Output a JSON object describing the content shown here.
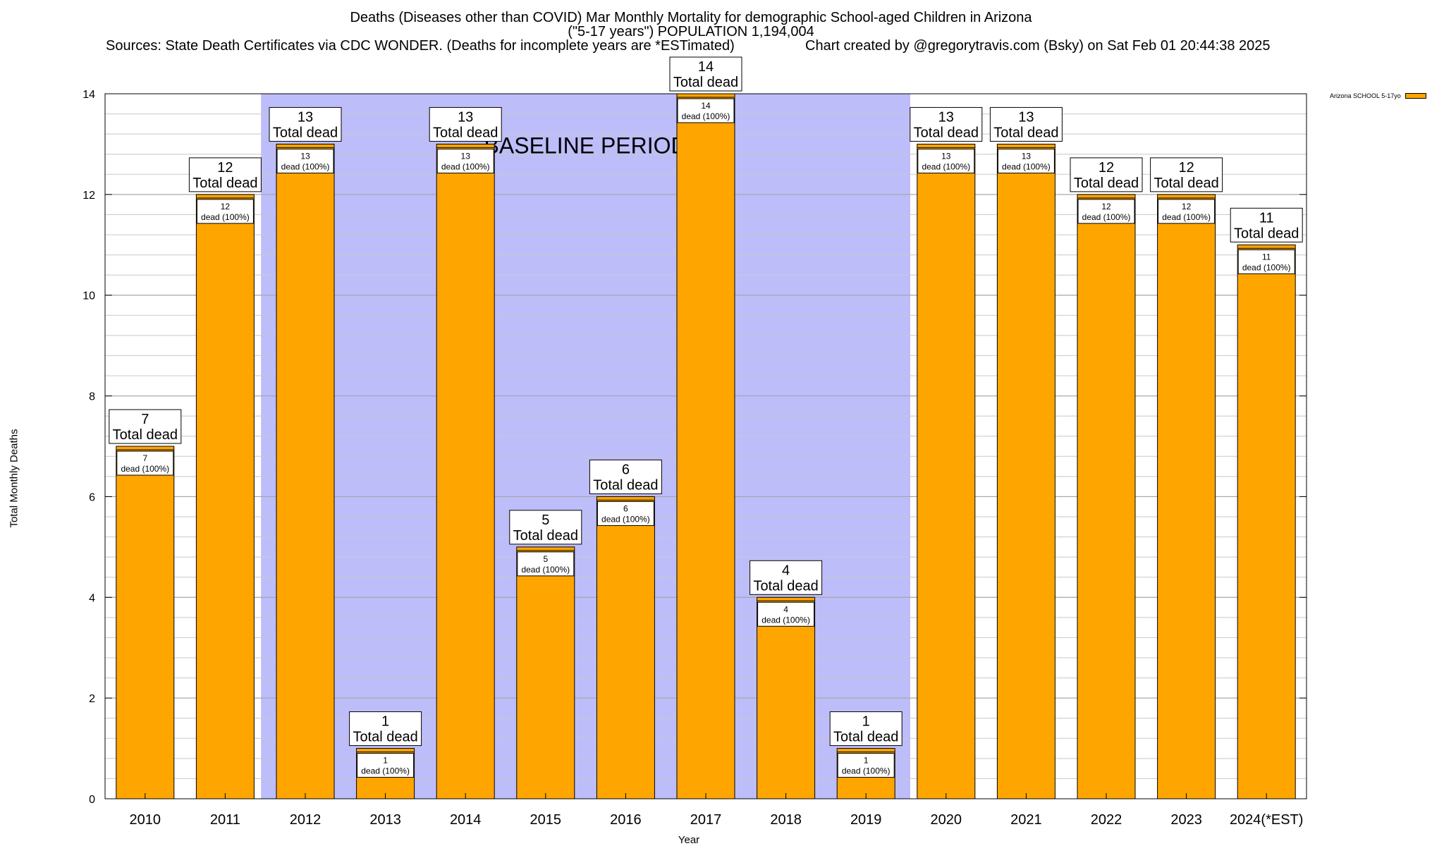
{
  "chart_data": {
    "type": "bar",
    "title": "Deaths (Diseases other than COVID) Mar Monthly Mortality for demographic School-aged Children in Arizona",
    "subtitle": "(\"5-17 years\") POPULATION 1,194,004",
    "sources": "Sources: State Death Certificates via CDC WONDER. (Deaths for incomplete years are *ESTimated)",
    "credit": "Chart created by @gregorytravis.com (Bsky) on Sat Feb 01 20:44:38 2025",
    "xlabel": "Year",
    "ylabel": "Total Monthly Deaths",
    "ylim": [
      0,
      14
    ],
    "yticks": [
      0,
      2,
      4,
      6,
      8,
      10,
      12,
      14
    ],
    "categories": [
      "2010",
      "2011",
      "2012",
      "2013",
      "2014",
      "2015",
      "2016",
      "2017",
      "2018",
      "2019",
      "2020",
      "2021",
      "2022",
      "2023",
      "2024(*EST)"
    ],
    "series": [
      {
        "name": "Arizona SCHOOL 5-17yo",
        "values": [
          7,
          12,
          13,
          1,
          13,
          5,
          6,
          14,
          4,
          1,
          13,
          13,
          12,
          12,
          11
        ]
      }
    ],
    "top_label_text": "Total dead",
    "inner_label_text": "dead (100%)",
    "baseline": {
      "label": "BASELINE PERIOD",
      "start": "2012",
      "end": "2019"
    },
    "legend_position": "top-right",
    "grid": true,
    "colors": {
      "bar": "#FFA500",
      "baseline": "#BDBDFA"
    }
  }
}
